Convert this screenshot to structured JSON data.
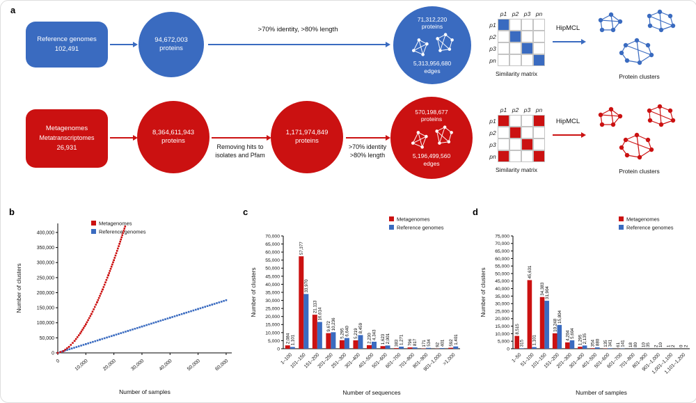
{
  "panels": {
    "a": "a",
    "b": "b",
    "c": "c",
    "d": "d"
  },
  "colors": {
    "red": "#cb1111",
    "blue": "#3a6bc0"
  },
  "panel_a": {
    "blue_row": {
      "box": [
        "Reference genomes",
        "102,491"
      ],
      "circle1": [
        "94,672,003",
        "proteins"
      ],
      "arrow_label": ">70% identity, >80% length",
      "net_circle": {
        "top_value": "71,312,220",
        "top_unit": "proteins",
        "bottom_value": "5,313,956,680",
        "bottom_unit": "edges"
      },
      "hipmcl": "HipMCL",
      "matrix_caption": "Similarity matrix",
      "clusters_caption": "Protein clusters"
    },
    "red_row": {
      "box": [
        "Metagenomes",
        "Metatranscriptomes",
        "26,931"
      ],
      "circle1": [
        "8,364,611,943",
        "proteins"
      ],
      "arrow1_label": [
        "Removing hits to",
        "isolates and Pfam"
      ],
      "circle2": [
        "1,171,974,849",
        "proteins"
      ],
      "arrow2_label": [
        ">70% identity",
        ">80% length"
      ],
      "net_circle": {
        "top_value": "570,198,677",
        "top_unit": "proteins",
        "bottom_value": "5,196,499,560",
        "bottom_unit": "edges"
      },
      "hipmcl": "HipMCL",
      "matrix_caption": "Similarity matrix",
      "clusters_caption": "Protein clusters"
    },
    "matrix_headers": [
      "p1",
      "p2",
      "p3",
      "pn"
    ],
    "matrix_blue_cells": [
      [
        0,
        0
      ],
      [
        1,
        1
      ],
      [
        2,
        2
      ],
      [
        3,
        3
      ]
    ],
    "matrix_red_cells": [
      [
        0,
        0
      ],
      [
        0,
        3
      ],
      [
        1,
        1
      ],
      [
        2,
        2
      ],
      [
        3,
        0
      ],
      [
        3,
        3
      ]
    ]
  },
  "chart_data": [
    {
      "panel": "b",
      "type": "scatter",
      "xlabel": "Number of samples",
      "ylabel": "Number of clusters",
      "xlim": [
        0,
        62000
      ],
      "ylim": [
        0,
        430000
      ],
      "xticks": [
        0,
        10000,
        20000,
        30000,
        40000,
        50000,
        60000
      ],
      "yticks": [
        0,
        50000,
        100000,
        150000,
        200000,
        250000,
        300000,
        350000,
        400000
      ],
      "legend_position": "top-center",
      "series": [
        {
          "name": "Metagenomes",
          "color": "#cb1111",
          "points": [
            [
              0,
              0
            ],
            [
              2000,
              6100
            ],
            [
              4000,
              20000
            ],
            [
              6000,
              39800
            ],
            [
              8000,
              64800
            ],
            [
              10000,
              94900
            ],
            [
              12000,
              129300
            ],
            [
              14000,
              168000
            ],
            [
              16000,
              210800
            ],
            [
              18000,
              257600
            ],
            [
              20000,
              308000
            ],
            [
              22000,
              362300
            ],
            [
              24000,
              420000
            ]
          ]
        },
        {
          "name": "Reference genomes",
          "color": "#3a6bc0",
          "points": [
            [
              0,
              0
            ],
            [
              5000,
              14600
            ],
            [
              10000,
              29200
            ],
            [
              15000,
              43800
            ],
            [
              20000,
              58300
            ],
            [
              25000,
              72900
            ],
            [
              30000,
              87500
            ],
            [
              35000,
              102100
            ],
            [
              40000,
              116700
            ],
            [
              45000,
              131300
            ],
            [
              50000,
              145800
            ],
            [
              55000,
              160400
            ],
            [
              60000,
              175000
            ]
          ]
        }
      ]
    },
    {
      "panel": "c",
      "type": "bar",
      "xlabel": "Number of sequences",
      "ylabel": "Number of clusters",
      "ylim": [
        0,
        70000
      ],
      "yticks": [
        0,
        5000,
        10000,
        15000,
        20000,
        25000,
        30000,
        35000,
        40000,
        45000,
        50000,
        55000,
        60000,
        65000,
        70000
      ],
      "categories": [
        "1–100",
        "101–150",
        "151–200",
        "201–250",
        "251–300",
        "301–400",
        "401–500",
        "501–600",
        "601–700",
        "701–800",
        "801–900",
        "901–1,000",
        ">1,000"
      ],
      "bar_value_labels": true,
      "legend_position": "top-right",
      "series": [
        {
          "name": "Metagenomes",
          "color": "#cb1111",
          "values": [
            2084,
            57377,
            21113,
            9672,
            5295,
            5219,
            2230,
            1623,
            383,
            796,
            171,
            92,
            592
          ]
        },
        {
          "name": "Reference genomes",
          "color": "#3a6bc0",
          "values": [
            1101,
            33970,
            16614,
            10236,
            6640,
            8459,
            4343,
            2001,
            1271,
            817,
            534,
            401,
            1401
          ]
        }
      ]
    },
    {
      "panel": "d",
      "type": "bar",
      "xlabel": "Number of samples",
      "ylabel": "Number of clusters",
      "ylim": [
        0,
        75000
      ],
      "yticks": [
        0,
        5000,
        10000,
        15000,
        20000,
        25000,
        30000,
        35000,
        40000,
        45000,
        50000,
        55000,
        60000,
        65000,
        70000,
        75000
      ],
      "categories": [
        "1–50",
        "51–100",
        "101–150",
        "151–200",
        "201–300",
        "301–400",
        "401–500",
        "501–600",
        "601–700",
        "701–800",
        "801–900",
        "901–1,000",
        "1,001–1,100",
        "1,101–1,200"
      ],
      "bar_value_labels": true,
      "legend_position": "top-right",
      "series": [
        {
          "name": "Metagenomes",
          "color": "#cb1111",
          "values": [
            8515,
            45631,
            34383,
            10248,
            4204,
            1295,
            354,
            135,
            61,
            18,
            10,
            2,
            1,
            0
          ]
        },
        {
          "name": "Reference genomes",
          "color": "#3a6bc0",
          "values": [
            315,
            1101,
            31904,
            15804,
            5604,
            2135,
            880,
            341,
            141,
            80,
            35,
            10,
            2,
            2
          ]
        }
      ]
    }
  ]
}
